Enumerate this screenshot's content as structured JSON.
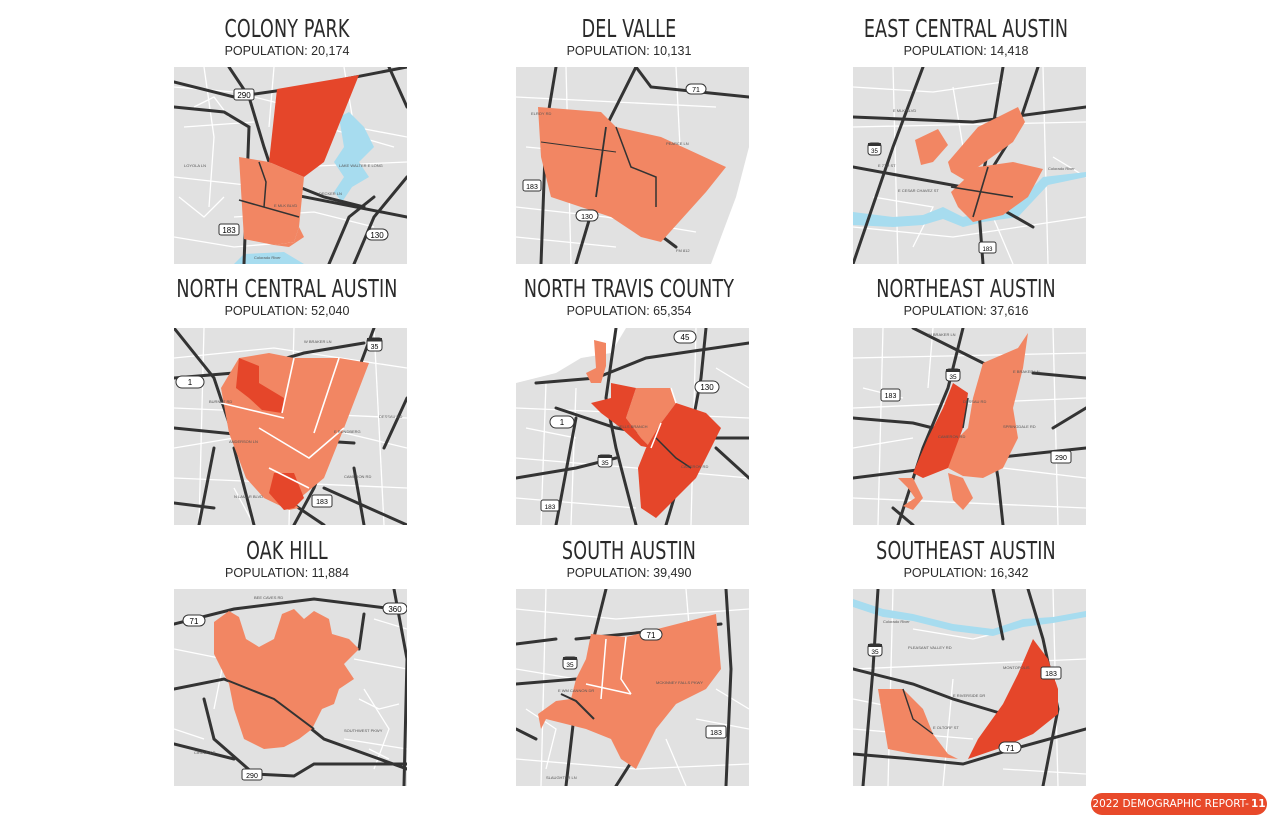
{
  "colors": {
    "map_bg": "#e1e1e1",
    "street": "#ffffff",
    "highway": "#333333",
    "water": "#a7dcef",
    "light_zone": "#f28663",
    "dark_zone": "#e5462a",
    "footer_bg": "#e8492a"
  },
  "panels": [
    {
      "title": "COLONY PARK",
      "population": "POPULATION: 20,174",
      "shields": [
        {
          "type": "us",
          "num": "290"
        },
        {
          "type": "us",
          "num": "183"
        },
        {
          "type": "oval",
          "num": "130"
        }
      ],
      "road_labels": [
        "LAKE WALTER E LONG",
        "DECKER LN",
        "E MLK BLVD",
        "LOYOLA LN",
        "Colorado River"
      ]
    },
    {
      "title": "DEL VALLE",
      "population": "POPULATION: 10,131",
      "shields": [
        {
          "type": "oval",
          "num": "71"
        },
        {
          "type": "us",
          "num": "183"
        },
        {
          "type": "oval",
          "num": "130"
        }
      ],
      "road_labels": [
        "ELROY RD",
        "PEARCE LN",
        "FM 812"
      ]
    },
    {
      "title": "EAST CENTRAL AUSTIN",
      "population": "POPULATION: 14,418",
      "shields": [
        {
          "type": "i",
          "num": "35"
        },
        {
          "type": "us",
          "num": "183"
        }
      ],
      "road_labels": [
        "E MLK BLVD",
        "E 7TH ST",
        "E CESAR CHAVEZ ST",
        "Colorado River"
      ]
    },
    {
      "title": "NORTH CENTRAL AUSTIN",
      "population": "POPULATION: 52,040",
      "shields": [
        {
          "type": "i",
          "num": "35"
        },
        {
          "type": "oval",
          "num": "1"
        },
        {
          "type": "us",
          "num": "183"
        }
      ],
      "road_labels": [
        "W BRAKER LN",
        "BURNET RD",
        "ANDERSON LN",
        "E RUNDBERG",
        "CAMERON RD",
        "N LAMAR BLVD",
        "DESSAU RD"
      ]
    },
    {
      "title": "NORTH TRAVIS COUNTY",
      "population": "POPULATION: 65,354",
      "shields": [
        {
          "type": "oval",
          "num": "45"
        },
        {
          "type": "oval",
          "num": "130"
        },
        {
          "type": "oval",
          "num": "1"
        },
        {
          "type": "i",
          "num": "35"
        },
        {
          "type": "us",
          "num": "183"
        }
      ],
      "road_labels": [
        "WELLS BRANCH",
        "CAMERON RD"
      ]
    },
    {
      "title": "NORTHEAST AUSTIN",
      "population": "POPULATION: 37,616",
      "shields": [
        {
          "type": "i",
          "num": "35"
        },
        {
          "type": "us",
          "num": "183"
        },
        {
          "type": "us",
          "num": "290"
        }
      ],
      "road_labels": [
        "W BRAKER LN",
        "E BRAKER LN",
        "DESSAU RD",
        "CAMERON RD",
        "SPRINGDALE RD"
      ]
    },
    {
      "title": "OAK HILL",
      "population": "POPULATION: 11,884",
      "shields": [
        {
          "type": "oval",
          "num": "71"
        },
        {
          "type": "oval",
          "num": "360"
        },
        {
          "type": "us",
          "num": "290"
        }
      ],
      "road_labels": [
        "BEE CAVES RD",
        "SOUTHWEST PKWY",
        "CIRCLE DR"
      ]
    },
    {
      "title": "SOUTH AUSTIN",
      "population": "POPULATION: 39,490",
      "shields": [
        {
          "type": "i",
          "num": "35"
        },
        {
          "type": "oval",
          "num": "71"
        },
        {
          "type": "us",
          "num": "183"
        }
      ],
      "road_labels": [
        "E WM CANNON DR",
        "MCKINNEY FALLS PKWY",
        "SLAUGHTER LN"
      ]
    },
    {
      "title": "SOUTHEAST AUSTIN",
      "population": "POPULATION: 16,342",
      "shields": [
        {
          "type": "i",
          "num": "35"
        },
        {
          "type": "us",
          "num": "183"
        },
        {
          "type": "oval",
          "num": "71"
        }
      ],
      "road_labels": [
        "Colorado River",
        "E RIVERSIDE DR",
        "E OLTORF ST",
        "MONTOPOLIS",
        "PLEASANT VALLEY RD"
      ]
    }
  ],
  "footer": {
    "label": "2022 DEMOGRAPHIC REPORT-",
    "page": "11"
  }
}
